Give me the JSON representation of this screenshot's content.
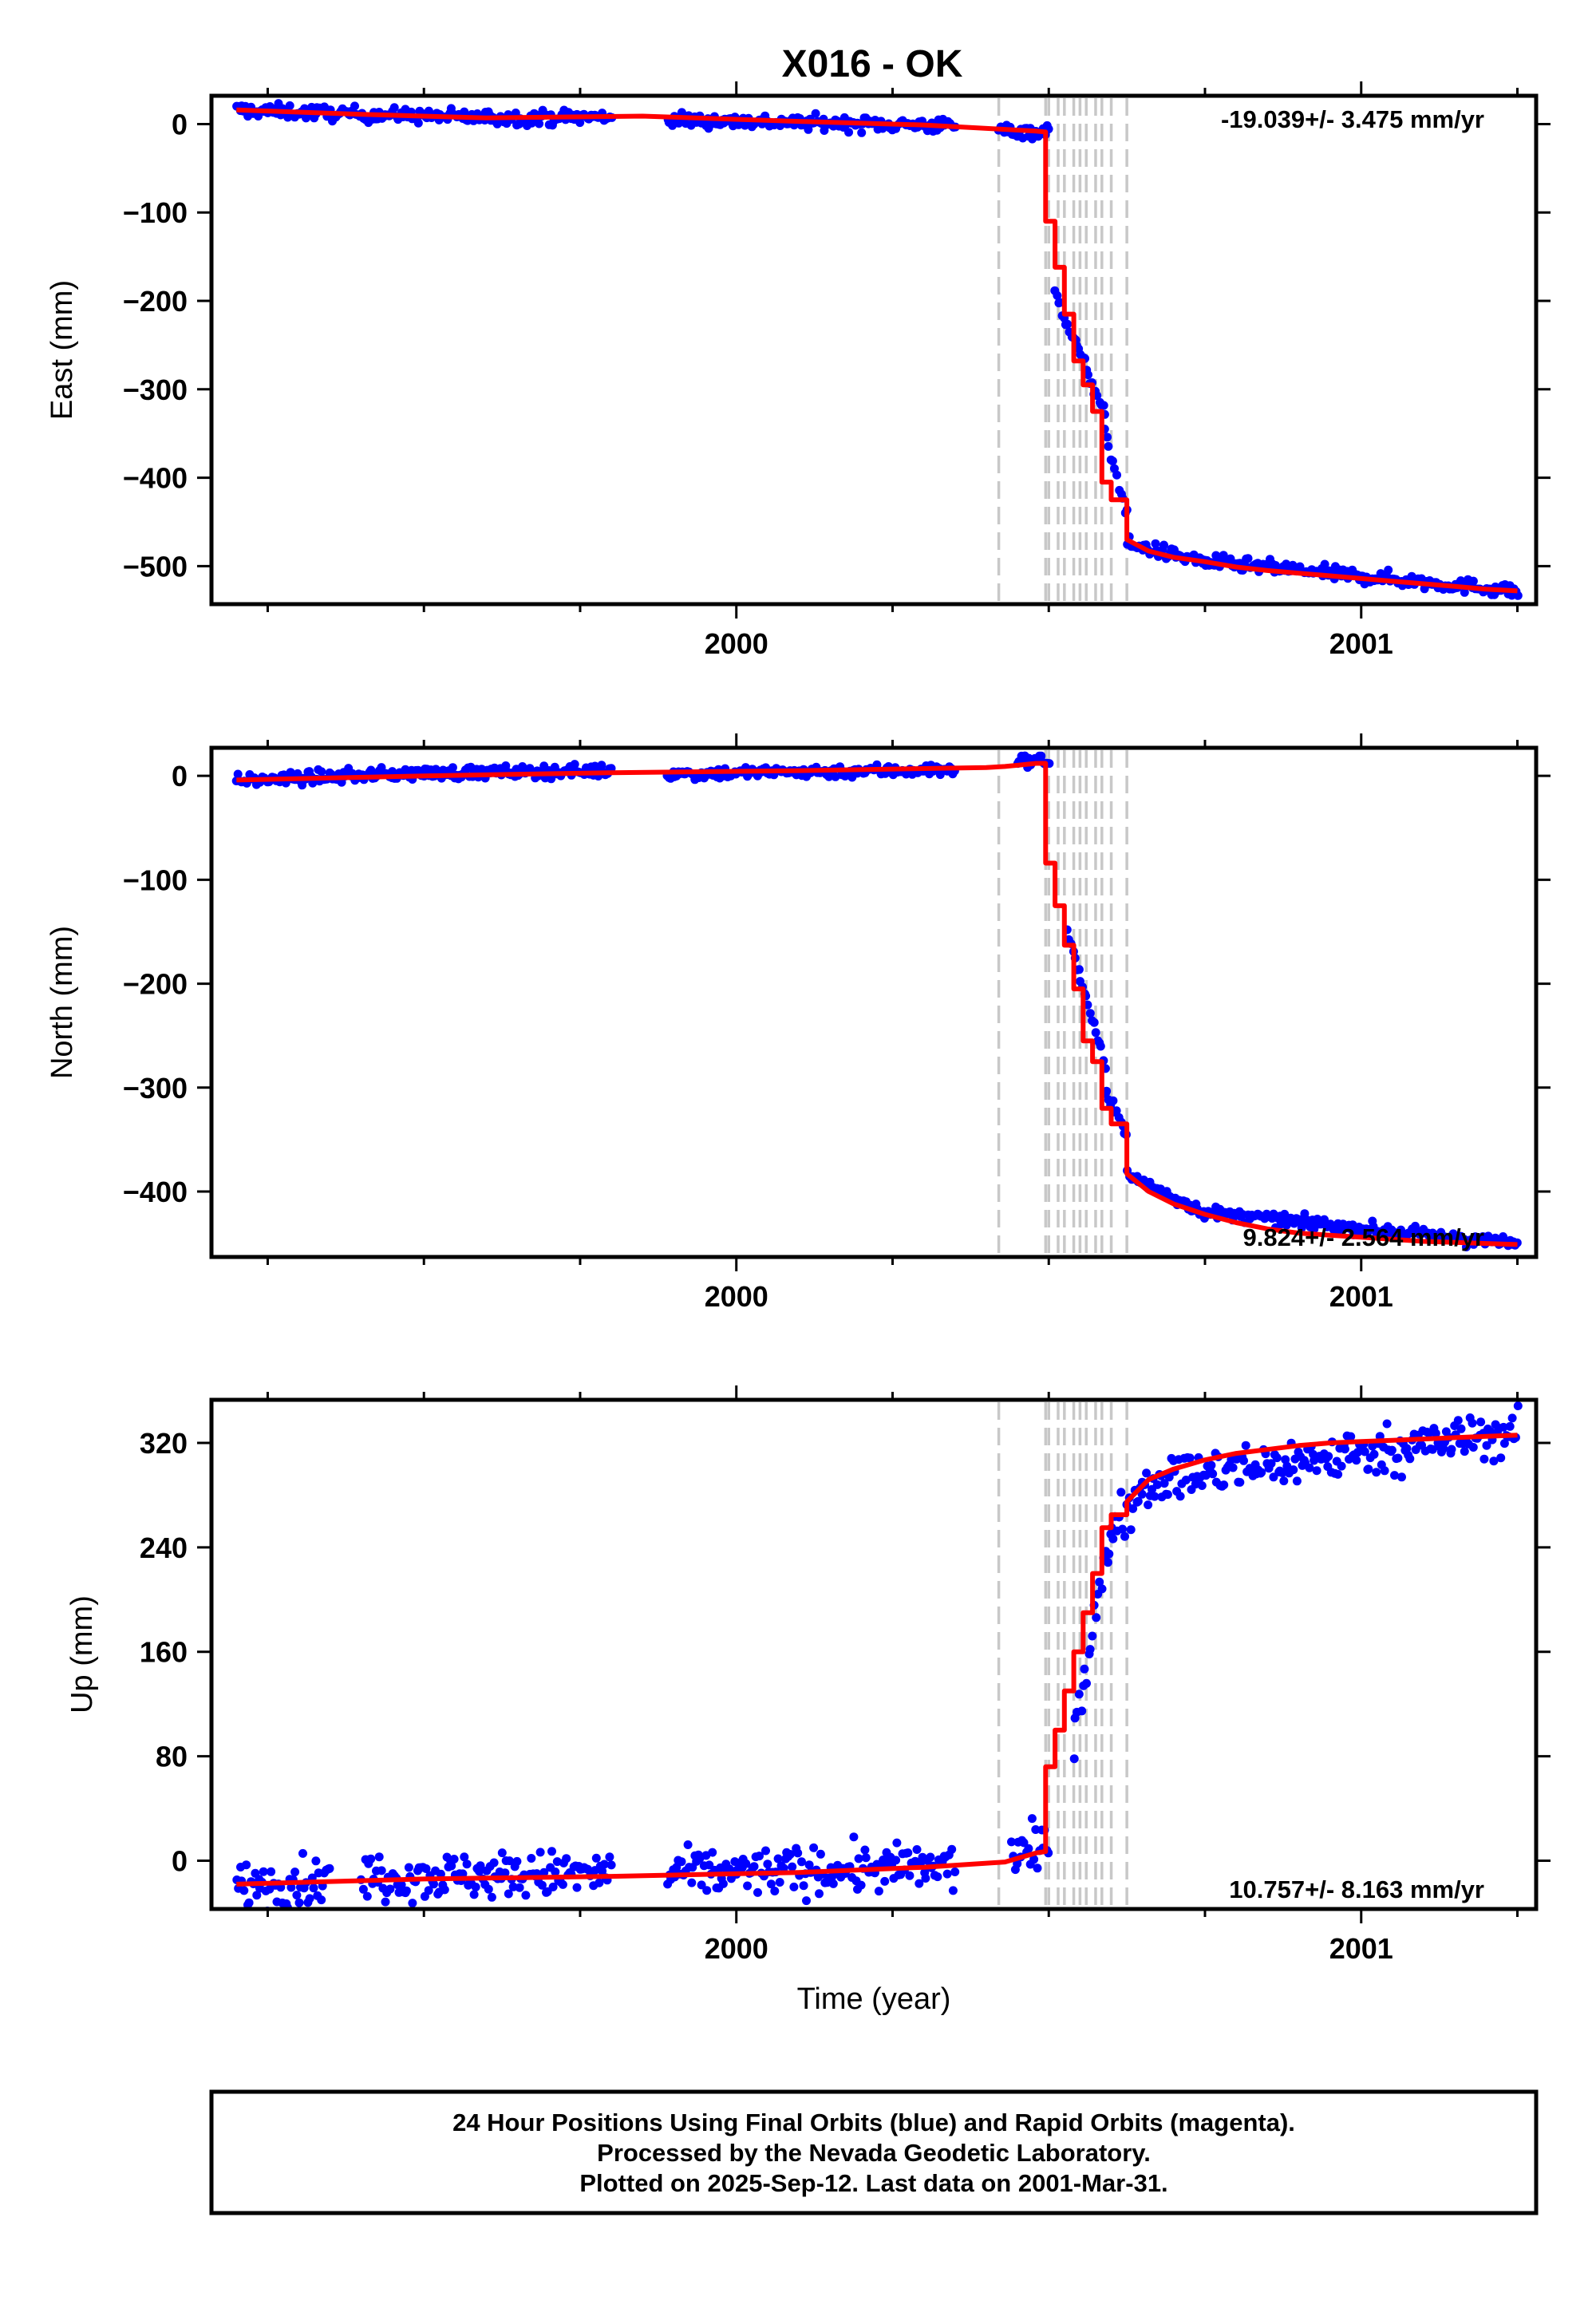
{
  "title": "X016 - OK",
  "footer": {
    "line1": "24 Hour Positions Using Final Orbits (blue) and Rapid Orbits (magenta).",
    "line2": "Processed by the Nevada Geodetic Laboratory.",
    "line3": "Plotted on 2025-Sep-12. Last data on 2001-Mar-31."
  },
  "colors": {
    "final_points": "#0000ff",
    "model": "#ff0000",
    "steps": "#c8c8c8"
  },
  "chart_data": [
    {
      "type": "scatter",
      "name": "east",
      "ylabel": "East (mm)",
      "xlabel": "",
      "rate_label": "-19.039+/- 3.475 mm/yr",
      "rate_position": "top-right",
      "xlim": [
        1999.16,
        2001.28
      ],
      "ylim": [
        -543,
        32
      ],
      "yticks": [
        0,
        -100,
        -200,
        -300,
        -400,
        -500
      ],
      "xtick_labels": [
        "2000",
        "2001"
      ],
      "model_line": {
        "x": [
          1999.2,
          1999.4,
          1999.6,
          1999.85,
          2000.1,
          2000.3,
          2000.43,
          2000.48,
          2000.495,
          2000.495,
          2000.51,
          2000.51,
          2000.525,
          2000.525,
          2000.54,
          2000.54,
          2000.555,
          2000.555,
          2000.57,
          2000.57,
          2000.585,
          2000.585,
          2000.6,
          2000.6,
          2000.625,
          2000.625,
          2000.66,
          2000.7,
          2000.75,
          2000.8,
          2000.85,
          2000.9,
          2000.95,
          2001.0,
          2001.05,
          2001.1,
          2001.15,
          2001.2,
          2001.25
        ],
        "y": [
          16,
          11,
          7,
          9,
          3,
          -1,
          -6,
          -8,
          -9,
          -110,
          -110,
          -162,
          -162,
          -215,
          -215,
          -268,
          -268,
          -295,
          -295,
          -325,
          -325,
          -405,
          -405,
          -425,
          -425,
          -470,
          -483,
          -490,
          -495,
          -501,
          -505,
          -508,
          -511,
          -514,
          -517,
          -520,
          -523,
          -526,
          -528
        ]
      },
      "points_trend": [
        {
          "x": [
            1999.2,
            1999.4
          ],
          "y": [
            16,
            11
          ]
        },
        {
          "x": [
            1999.4,
            1999.62
          ],
          "y": [
            11,
            7
          ]
        },
        {
          "x": [
            1999.62,
            1999.8
          ],
          "y": [
            7,
            8
          ]
        },
        {
          "x": [
            1999.89,
            2000.35
          ],
          "y": [
            5,
            -2
          ]
        },
        {
          "x": [
            2000.42,
            2000.5
          ],
          "y": [
            -7,
            -9
          ]
        },
        {
          "x": [
            2000.51,
            2000.59
          ],
          "y": [
            -190,
            -330
          ]
        },
        {
          "x": [
            2000.59,
            2000.625
          ],
          "y": [
            -350,
            -440
          ]
        },
        {
          "x": [
            2000.626,
            2000.75
          ],
          "y": [
            -475,
            -495
          ]
        },
        {
          "x": [
            2000.75,
            2001.25
          ],
          "y": [
            -495,
            -528
          ]
        }
      ],
      "point_noise": 4
    },
    {
      "type": "scatter",
      "name": "north",
      "ylabel": "North (mm)",
      "xlabel": "",
      "rate_label": "9.824+/- 2.564 mm/yr",
      "rate_position": "bottom-right",
      "xlim": [
        1999.16,
        2001.28
      ],
      "ylim": [
        -463,
        27
      ],
      "yticks": [
        0,
        -100,
        -200,
        -300,
        -400
      ],
      "xtick_labels": [
        "2000",
        "2001"
      ],
      "model_line": {
        "x": [
          1999.2,
          1999.5,
          1999.8,
          2000.1,
          2000.4,
          2000.43,
          2000.48,
          2000.495,
          2000.495,
          2000.51,
          2000.51,
          2000.525,
          2000.525,
          2000.54,
          2000.54,
          2000.555,
          2000.555,
          2000.57,
          2000.57,
          2000.585,
          2000.585,
          2000.6,
          2000.6,
          2000.625,
          2000.625,
          2000.66,
          2000.7,
          2000.75,
          2000.8,
          2000.85,
          2000.9,
          2000.95,
          2001.0,
          2001.05,
          2001.1,
          2001.15,
          2001.2,
          2001.25
        ],
        "y": [
          -4,
          0,
          3,
          5,
          8,
          9,
          12,
          12,
          -84,
          -84,
          -125,
          -125,
          -163,
          -163,
          -205,
          -205,
          -255,
          -255,
          -275,
          -275,
          -320,
          -320,
          -335,
          -335,
          -383,
          -400,
          -412,
          -422,
          -430,
          -436,
          -440,
          -442,
          -444,
          -446,
          -448,
          -449,
          -450,
          -451
        ]
      },
      "points_trend": [
        {
          "x": [
            1999.2,
            1999.45
          ],
          "y": [
            -5,
            2
          ]
        },
        {
          "x": [
            1999.45,
            1999.8
          ],
          "y": [
            2,
            5
          ]
        },
        {
          "x": [
            1999.89,
            2000.35
          ],
          "y": [
            2,
            6
          ]
        },
        {
          "x": [
            2000.45,
            2000.5
          ],
          "y": [
            14,
            15
          ]
        },
        {
          "x": [
            2000.53,
            2000.59
          ],
          "y": [
            -150,
            -280
          ]
        },
        {
          "x": [
            2000.59,
            2000.625
          ],
          "y": [
            -300,
            -345
          ]
        },
        {
          "x": [
            2000.626,
            2000.75
          ],
          "y": [
            -385,
            -420
          ]
        },
        {
          "x": [
            2000.75,
            2001.25
          ],
          "y": [
            -420,
            -451
          ]
        }
      ],
      "point_noise": 3
    },
    {
      "type": "scatter",
      "name": "up",
      "ylabel": "Up (mm)",
      "xlabel": "Time (year)",
      "rate_label": "10.757+/- 8.163 mm/yr",
      "rate_position": "bottom-right",
      "xlim": [
        1999.16,
        2001.28
      ],
      "ylim": [
        -37,
        353
      ],
      "yticks": [
        0,
        80,
        160,
        240,
        320
      ],
      "xtick_labels": [
        "2000",
        "2001"
      ],
      "model_line": {
        "x": [
          1999.2,
          1999.5,
          1999.8,
          2000.1,
          2000.3,
          2000.43,
          2000.48,
          2000.495,
          2000.495,
          2000.51,
          2000.51,
          2000.525,
          2000.525,
          2000.54,
          2000.54,
          2000.555,
          2000.555,
          2000.57,
          2000.57,
          2000.585,
          2000.585,
          2000.6,
          2000.6,
          2000.625,
          2000.625,
          2000.66,
          2000.7,
          2000.75,
          2000.8,
          2000.85,
          2000.9,
          2000.95,
          2001.0,
          2001.05,
          2001.1,
          2001.15,
          2001.2,
          2001.25
        ],
        "y": [
          -18,
          -14,
          -12,
          -9,
          -5,
          -1,
          6,
          7,
          72,
          72,
          100,
          100,
          130,
          130,
          160,
          160,
          190,
          190,
          220,
          220,
          255,
          255,
          265,
          265,
          275,
          292,
          300,
          307,
          312,
          315,
          318,
          320,
          321,
          322,
          323,
          324,
          325,
          326
        ]
      },
      "points_trend": [
        {
          "x": [
            1999.2,
            1999.35
          ],
          "y": [
            -18,
            -15
          ]
        },
        {
          "x": [
            1999.4,
            1999.8
          ],
          "y": [
            -12,
            -10
          ]
        },
        {
          "x": [
            1999.89,
            2000.35
          ],
          "y": [
            -10,
            -5
          ]
        },
        {
          "x": [
            2000.44,
            2000.5
          ],
          "y": [
            5,
            9
          ]
        },
        {
          "x": [
            2000.54,
            2000.6
          ],
          "y": [
            100,
            250
          ]
        },
        {
          "x": [
            2000.6,
            2000.65
          ],
          "y": [
            255,
            285
          ]
        },
        {
          "x": [
            2000.65,
            2001.25
          ],
          "y": [
            290,
            328
          ]
        }
      ],
      "point_noise": 9
    }
  ],
  "step_lines_x": [
    2000.42,
    2000.495,
    2000.5,
    2000.515,
    2000.525,
    2000.54,
    2000.55,
    2000.56,
    2000.575,
    2000.585,
    2000.6,
    2000.625
  ]
}
